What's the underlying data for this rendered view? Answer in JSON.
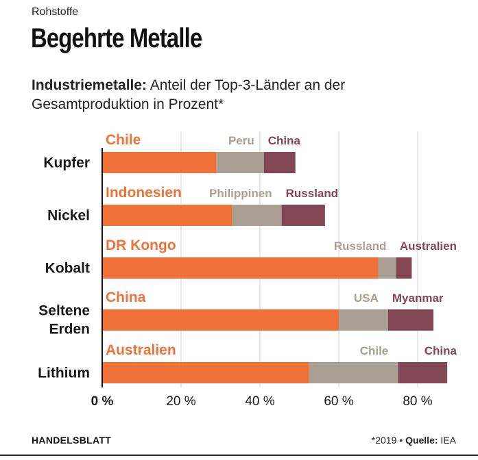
{
  "header": {
    "kicker": "Rohstoffe",
    "title": "Begehrte Metalle",
    "subtitle_bold": "Industriemetalle:",
    "subtitle_rest": " Anteil der Top-3-Länder an der Gesamtproduktion in Prozent*"
  },
  "colors": {
    "first": "#f07238",
    "second": "#aa9f94",
    "third": "#834654",
    "grid": "#cfcfcf",
    "text": "#1a1a1a"
  },
  "chart_data": {
    "type": "bar",
    "orientation": "horizontal",
    "stacked": true,
    "xlim": [
      0,
      90
    ],
    "ticks": [
      0,
      20,
      40,
      60,
      80
    ],
    "tick_labels": [
      "0 %",
      "20 %",
      "40 %",
      "60 %",
      "80 %"
    ],
    "grid": true,
    "categories": [
      {
        "label": "Kupfer",
        "segments": [
          {
            "country": "Chile",
            "value": 29
          },
          {
            "country": "Peru",
            "value": 12
          },
          {
            "country": "China",
            "value": 8
          }
        ]
      },
      {
        "label": "Nickel",
        "segments": [
          {
            "country": "Indonesien",
            "value": 33
          },
          {
            "country": "Philippinen",
            "value": 12.5
          },
          {
            "country": "Russland",
            "value": 11
          }
        ]
      },
      {
        "label": "Kobalt",
        "segments": [
          {
            "country": "DR Kongo",
            "value": 70
          },
          {
            "country": "Russland",
            "value": 4.5
          },
          {
            "country": "Australien",
            "value": 4
          }
        ]
      },
      {
        "label": "Seltene Erden",
        "segments": [
          {
            "country": "China",
            "value": 60
          },
          {
            "country": "USA",
            "value": 12.5
          },
          {
            "country": "Myanmar",
            "value": 11.5
          }
        ]
      },
      {
        "label": "Lithium",
        "segments": [
          {
            "country": "Australien",
            "value": 52.5
          },
          {
            "country": "Chile",
            "value": 22.5
          },
          {
            "country": "China",
            "value": 12.5
          }
        ]
      }
    ]
  },
  "footer": {
    "source_brand": "HANDELSBLATT",
    "note": "*2019",
    "source_label": "Quelle:",
    "source_value": "IEA"
  }
}
